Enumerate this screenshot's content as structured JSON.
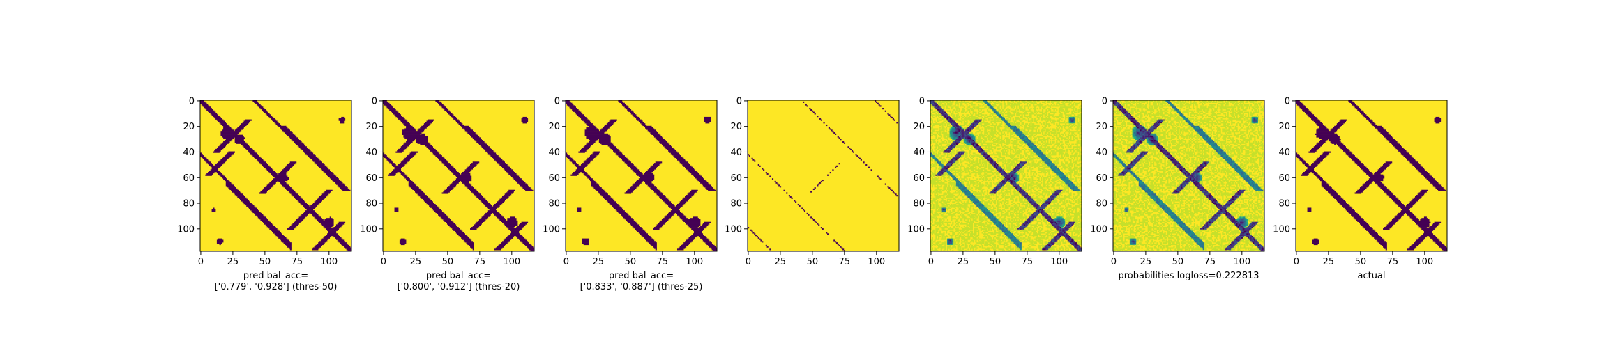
{
  "chart_data": [
    {
      "type": "heatmap",
      "grid_size": 118,
      "xlabel_lines": [
        "pred bal_acc=",
        "['0.779', '0.928'] (thres-50)"
      ],
      "x_ticks": [
        0,
        25,
        50,
        75,
        100
      ],
      "y_ticks": [
        0,
        20,
        40,
        60,
        80,
        100
      ],
      "colormap": "binary-viridis",
      "low_color": "#440154",
      "high_color": "#fde725"
    },
    {
      "type": "heatmap",
      "grid_size": 118,
      "xlabel_lines": [
        "pred bal_acc=",
        "['0.800', '0.912'] (thres-20)"
      ],
      "x_ticks": [
        0,
        25,
        50,
        75,
        100
      ],
      "y_ticks": [
        0,
        20,
        40,
        60,
        80,
        100
      ],
      "colormap": "binary-viridis",
      "low_color": "#440154",
      "high_color": "#fde725"
    },
    {
      "type": "heatmap",
      "grid_size": 118,
      "xlabel_lines": [
        "pred bal_acc=",
        "['0.833', '0.887'] (thres-25)"
      ],
      "x_ticks": [
        0,
        25,
        50,
        75,
        100
      ],
      "y_ticks": [
        0,
        20,
        40,
        60,
        80,
        100
      ],
      "colormap": "binary-viridis",
      "low_color": "#440154",
      "high_color": "#fde725"
    },
    {
      "type": "heatmap",
      "grid_size": 118,
      "xlabel_lines": [],
      "x_ticks": [
        0,
        25,
        50,
        75,
        100
      ],
      "y_ticks": [
        0,
        20,
        40,
        60,
        80,
        100
      ],
      "colormap": "binary-viridis",
      "low_color": "#440154",
      "high_color": "#fde725"
    },
    {
      "type": "heatmap",
      "grid_size": 118,
      "xlabel_lines": [],
      "x_ticks": [
        0,
        25,
        50,
        75,
        100
      ],
      "y_ticks": [
        0,
        20,
        40,
        60,
        80,
        100
      ],
      "colormap": "viridis",
      "low_color": "#440154",
      "high_color": "#fde725"
    },
    {
      "type": "heatmap",
      "grid_size": 118,
      "xlabel_lines": [
        "probabilities logloss=0.222813"
      ],
      "x_ticks": [
        0,
        25,
        50,
        75,
        100
      ],
      "y_ticks": [
        0,
        20,
        40,
        60,
        80,
        100
      ],
      "colormap": "viridis",
      "low_color": "#440154",
      "high_color": "#fde725"
    },
    {
      "type": "heatmap",
      "grid_size": 118,
      "xlabel_lines": [
        "actual"
      ],
      "x_ticks": [
        0,
        25,
        50,
        75,
        100
      ],
      "y_ticks": [
        0,
        20,
        40,
        60,
        80,
        100
      ],
      "colormap": "binary-viridis",
      "low_color": "#440154",
      "high_color": "#fde725"
    }
  ]
}
